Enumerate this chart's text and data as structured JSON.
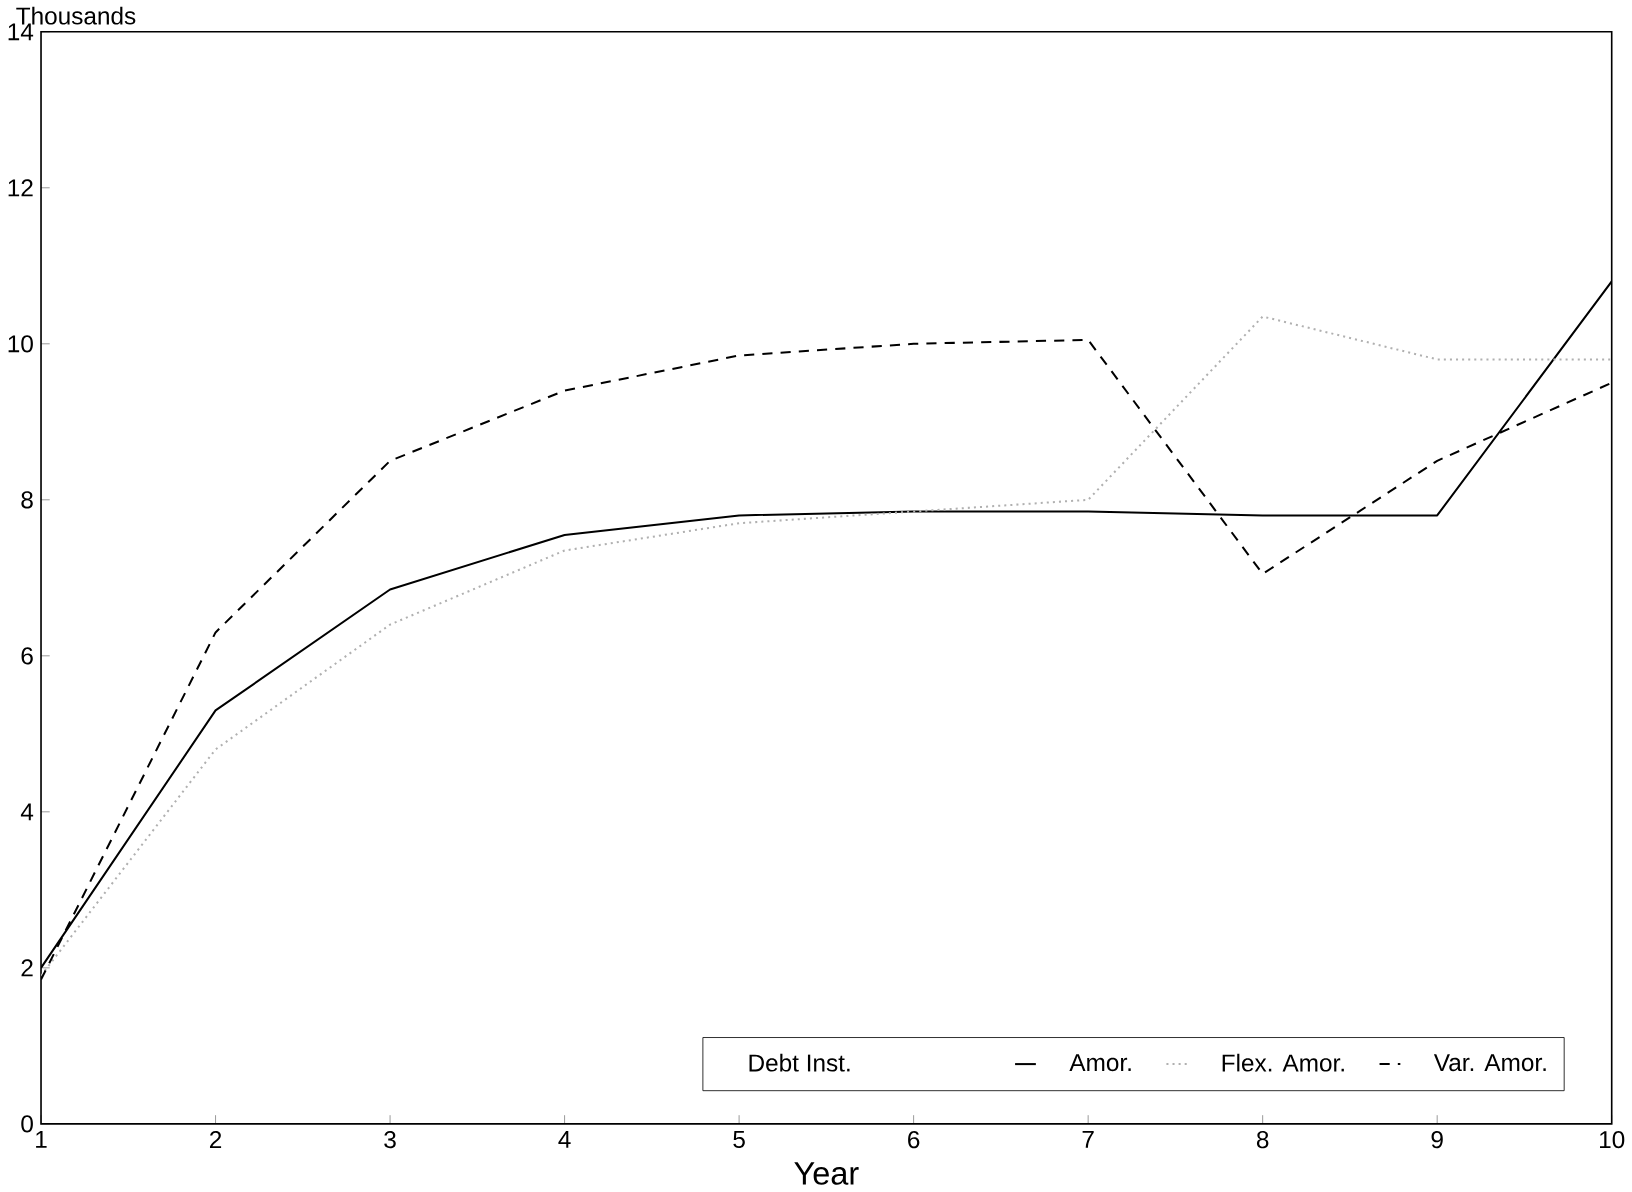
{
  "chart_data": {
    "type": "line",
    "ylabel": "Thousands",
    "xlabel": "Year",
    "legend_title": "Debt Inst.",
    "legend": "bottom right",
    "x": [
      1,
      2,
      3,
      4,
      5,
      6,
      7,
      8,
      9,
      10
    ],
    "xlim": [
      1,
      10
    ],
    "xticks": [
      1,
      2,
      3,
      4,
      5,
      6,
      7,
      8,
      9,
      10
    ],
    "ylim": [
      0,
      14
    ],
    "yticks": [
      0,
      2,
      4,
      6,
      8,
      10,
      12,
      14
    ],
    "grid": false,
    "series": [
      {
        "name": "Amor.",
        "color": "#000000",
        "line_style": "solid",
        "values": [
          2.0,
          5.3,
          6.85,
          7.55,
          7.8,
          7.85,
          7.85,
          7.8,
          7.8,
          10.8
        ]
      },
      {
        "name": "Flex. Amor.",
        "color": "#b0b0b0",
        "line_style": "dotted",
        "values": [
          1.9,
          4.8,
          6.4,
          7.35,
          7.7,
          7.85,
          8.0,
          10.35,
          9.8,
          9.8
        ]
      },
      {
        "name": "Var. Amor.",
        "color": "#000000",
        "line_style": "dashed",
        "values": [
          1.85,
          6.3,
          8.5,
          9.4,
          9.85,
          10.0,
          10.05,
          7.05,
          8.5,
          9.5
        ]
      }
    ]
  }
}
